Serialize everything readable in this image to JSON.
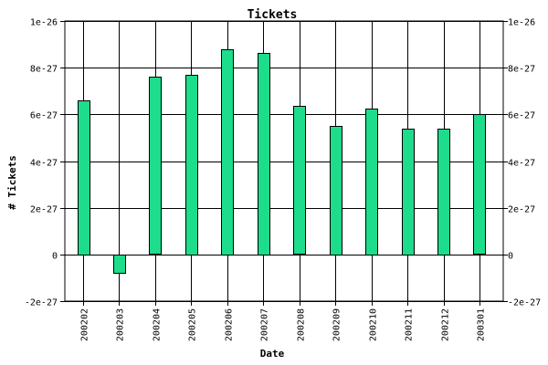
{
  "chart_data": {
    "type": "bar",
    "title": "Tickets",
    "xlabel": "Date",
    "ylabel": "# Tickets",
    "categories": [
      "200202",
      "200203",
      "200204",
      "200205",
      "200206",
      "200207",
      "200208",
      "200209",
      "200210",
      "200211",
      "200212",
      "200301"
    ],
    "values": [
      6.6e-27,
      -8e-28,
      7.6e-27,
      7.7e-27,
      8.8e-27,
      8.65e-27,
      6.35e-27,
      5.5e-27,
      6.25e-27,
      5.4e-27,
      5.4e-27,
      6e-27
    ],
    "ylim": [
      -2e-27,
      1e-26
    ],
    "y_ticks": [
      {
        "value": -2e-27,
        "label": "-2e-27"
      },
      {
        "value": 0,
        "label": "0"
      },
      {
        "value": 2e-27,
        "label": "2e-27"
      },
      {
        "value": 4e-27,
        "label": "4e-27"
      },
      {
        "value": 6e-27,
        "label": "6e-27"
      },
      {
        "value": 8e-27,
        "label": "8e-27"
      },
      {
        "value": 1e-26,
        "label": "1e-26"
      }
    ],
    "grid": true,
    "bar_color": "#1ddc8c",
    "bar_edge_color": "#000000",
    "grid_color": "#000000"
  }
}
